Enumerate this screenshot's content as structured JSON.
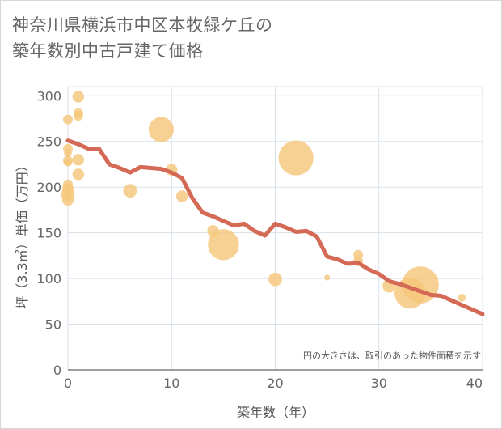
{
  "chart_data": {
    "type": "scatter",
    "title": "神奈川県横浜市中区本牧緑ケ丘の\n築年数別中古戸建て価格",
    "xlabel": "築年数（年）",
    "ylabel": "坪（3.3㎡）単価（万円）",
    "xlim": [
      0,
      40
    ],
    "ylim": [
      0,
      310
    ],
    "xticks": [
      0,
      10,
      20,
      30,
      40
    ],
    "yticks": [
      0,
      50,
      100,
      150,
      200,
      250,
      300
    ],
    "grid": true,
    "note": "円の大きさは、取引のあった物件面積を示す",
    "colors": {
      "bubble": "#f5c77b",
      "line": "#d46a55"
    },
    "bubbles": [
      {
        "x": 0,
        "y": 274,
        "r": 0.5
      },
      {
        "x": 0,
        "y": 242,
        "r": 0.5
      },
      {
        "x": 0,
        "y": 237,
        "r": 0.4
      },
      {
        "x": 0,
        "y": 229,
        "r": 0.5
      },
      {
        "x": 0,
        "y": 227,
        "r": 0.4
      },
      {
        "x": 0,
        "y": 203,
        "r": 0.5
      },
      {
        "x": 0,
        "y": 198,
        "r": 0.6
      },
      {
        "x": 0,
        "y": 192,
        "r": 0.7
      },
      {
        "x": 0,
        "y": 186,
        "r": 0.6
      },
      {
        "x": 1,
        "y": 299,
        "r": 0.6
      },
      {
        "x": 1,
        "y": 281,
        "r": 0.5
      },
      {
        "x": 1,
        "y": 278,
        "r": 0.5
      },
      {
        "x": 1,
        "y": 230,
        "r": 0.6
      },
      {
        "x": 1,
        "y": 214,
        "r": 0.6
      },
      {
        "x": 6,
        "y": 196,
        "r": 0.7
      },
      {
        "x": 9,
        "y": 263,
        "r": 1.3
      },
      {
        "x": 10,
        "y": 219,
        "r": 0.6
      },
      {
        "x": 11,
        "y": 190,
        "r": 0.6
      },
      {
        "x": 14,
        "y": 152,
        "r": 0.6
      },
      {
        "x": 15,
        "y": 137,
        "r": 1.6
      },
      {
        "x": 20,
        "y": 99,
        "r": 0.7
      },
      {
        "x": 22,
        "y": 232,
        "r": 1.8
      },
      {
        "x": 25,
        "y": 101,
        "r": 0.3
      },
      {
        "x": 28,
        "y": 126,
        "r": 0.5
      },
      {
        "x": 28,
        "y": 119,
        "r": 0.5
      },
      {
        "x": 31,
        "y": 92,
        "r": 0.7
      },
      {
        "x": 33,
        "y": 84,
        "r": 1.6
      },
      {
        "x": 34,
        "y": 93,
        "r": 1.9
      },
      {
        "x": 38,
        "y": 79,
        "r": 0.4
      }
    ],
    "trend": {
      "x": [
        0,
        1,
        2,
        3,
        4,
        5,
        6,
        7,
        8,
        9,
        10,
        11,
        12,
        13,
        14,
        15,
        16,
        17,
        18,
        19,
        20,
        21,
        22,
        23,
        24,
        25,
        26,
        27,
        28,
        29,
        30,
        31,
        32,
        33,
        34,
        35,
        36,
        37,
        38,
        39,
        40
      ],
      "y": [
        251,
        247,
        242,
        242,
        225,
        221,
        216,
        222,
        221,
        220,
        216,
        210,
        188,
        172,
        168,
        163,
        158,
        160,
        152,
        147,
        160,
        156,
        151,
        152,
        146,
        124,
        121,
        116,
        117,
        110,
        105,
        97,
        94,
        90,
        86,
        82,
        81,
        76,
        71,
        66,
        61
      ]
    }
  }
}
